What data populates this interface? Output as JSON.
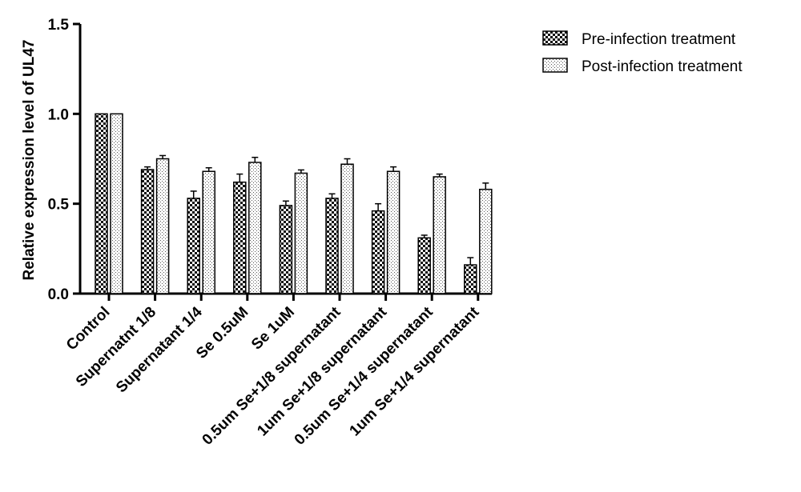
{
  "chart_data": {
    "type": "bar",
    "categories": [
      "Control",
      "Supernatnt 1/8",
      "Supernatant 1/4",
      "Se 0.5uM",
      "Se 1uM",
      "0.5um Se+1/8 supernatant",
      "1um Se+1/8 supernatant",
      "0.5um Se+1/4 supernatant",
      "1um Se+1/4 supernatant"
    ],
    "series": [
      {
        "name": "Pre-infection treatment",
        "pattern": "checkerboard",
        "values": [
          1.0,
          0.69,
          0.53,
          0.62,
          0.49,
          0.53,
          0.46,
          0.31,
          0.16
        ],
        "errors": [
          0.0,
          0.015,
          0.04,
          0.045,
          0.025,
          0.025,
          0.04,
          0.015,
          0.04
        ]
      },
      {
        "name": "Post-infection treatment",
        "pattern": "dotted",
        "values": [
          1.0,
          0.75,
          0.68,
          0.73,
          0.67,
          0.72,
          0.68,
          0.65,
          0.58
        ],
        "errors": [
          0.0,
          0.018,
          0.02,
          0.028,
          0.018,
          0.03,
          0.025,
          0.015,
          0.035
        ]
      }
    ],
    "ylabel": "Relative expression level of UL47",
    "xlabel": "",
    "ylim": [
      0,
      1.5
    ],
    "yticks": [
      "0.0",
      "0.5",
      "1.0",
      "1.5"
    ],
    "grid": false,
    "legend_position": "top-right",
    "colors": {
      "ink": "#000000",
      "background": "#ffffff"
    }
  }
}
